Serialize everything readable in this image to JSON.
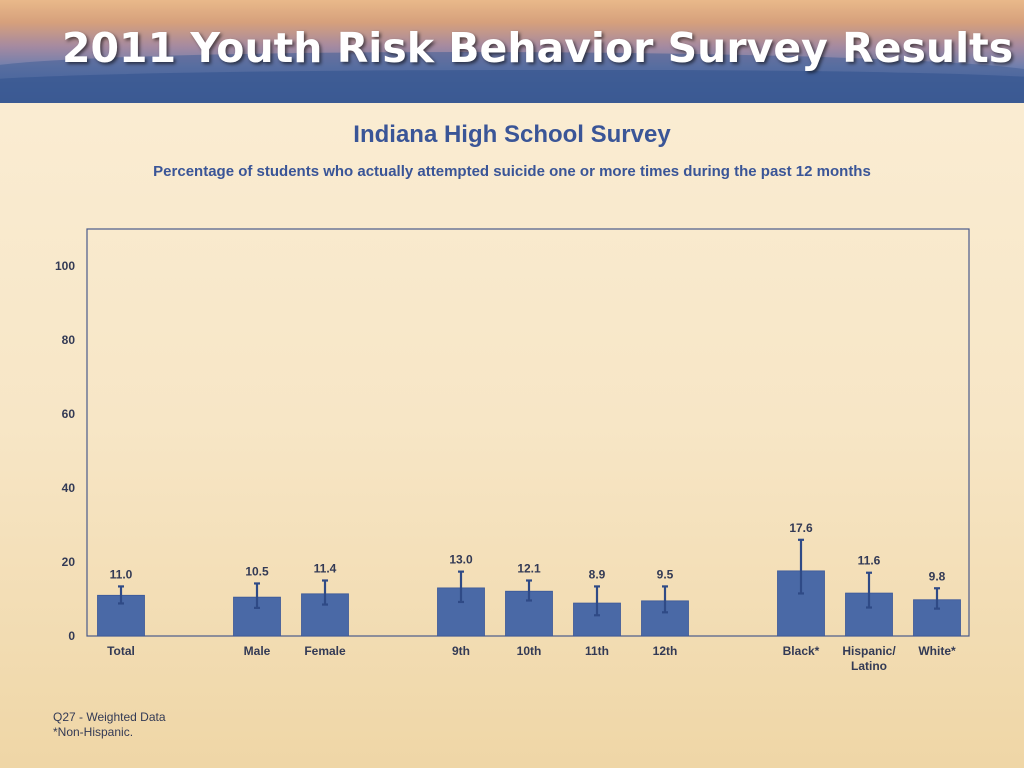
{
  "banner": {
    "title": "2011 Youth Risk Behavior Survey Results"
  },
  "title": "Indiana High School Survey",
  "subtitle": "Percentage of students who actually attempted suicide one or more times during the past 12 months",
  "footnotes": [
    "Q27 - Weighted Data",
    "*Non-Hispanic."
  ],
  "colors": {
    "bar": "#4a69a6",
    "bar_edge": "#3b5898",
    "error_bar": "#2f4a86",
    "title": "#3a5597",
    "axis": "#4a5a8a"
  },
  "chart_data": {
    "type": "bar",
    "title": "",
    "xlabel": "",
    "ylabel": "",
    "ylim": [
      0,
      110
    ],
    "yticks": [
      0,
      20,
      40,
      60,
      80,
      100
    ],
    "grid": false,
    "groups": [
      {
        "categories": [
          {
            "label": "Total"
          }
        ],
        "values": [
          11.0
        ],
        "ci_low": [
          8.8
        ],
        "ci_high": [
          13.4
        ]
      },
      {
        "categories": [
          {
            "label": "Male"
          },
          {
            "label": "Female"
          }
        ],
        "values": [
          10.5,
          11.4
        ],
        "ci_low": [
          7.6,
          8.5
        ],
        "ci_high": [
          14.2,
          15.0
        ]
      },
      {
        "categories": [
          {
            "label": "9th"
          },
          {
            "label": "10th"
          },
          {
            "label": "11th"
          },
          {
            "label": "12th"
          }
        ],
        "values": [
          13.0,
          12.1,
          8.9,
          9.5
        ],
        "ci_low": [
          9.2,
          9.6,
          5.6,
          6.4
        ],
        "ci_high": [
          17.4,
          15.0,
          13.4,
          13.4
        ]
      },
      {
        "categories": [
          {
            "label": "Black*"
          },
          {
            "label": "Hispanic/",
            "label2": "Latino"
          },
          {
            "label": "White*"
          }
        ],
        "values": [
          17.6,
          11.6,
          9.8
        ],
        "ci_low": [
          11.5,
          7.7,
          7.4
        ],
        "ci_high": [
          26.0,
          17.1,
          12.9
        ]
      }
    ]
  }
}
